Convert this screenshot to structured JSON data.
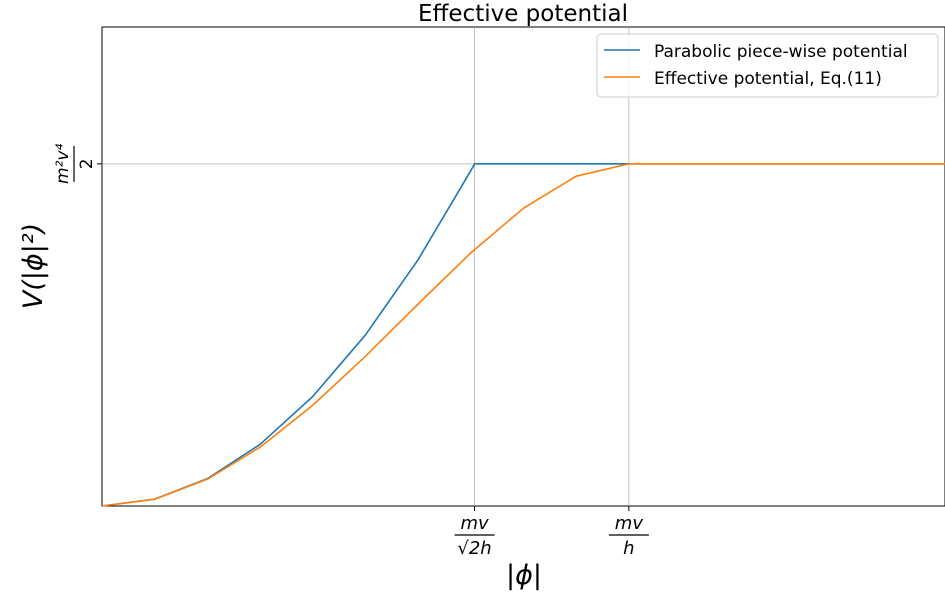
{
  "chart_data": {
    "type": "line",
    "title": "Effective potential",
    "xlabel": "|ϕ|",
    "ylabel": "V(|ϕ|²)",
    "xlim": [
      0,
      1.6
    ],
    "ylim": [
      0,
      1.4
    ],
    "grid": "vertical and horizontal lines at the labeled ticks only",
    "legend_position": "upper right",
    "x_ticks": [
      {
        "value": 0.7071,
        "numerator": "mv",
        "denominator": "√2h"
      },
      {
        "value": 1.0,
        "numerator": "mv",
        "denominator": "h"
      }
    ],
    "y_ticks": [
      {
        "value": 1.0,
        "numerator": "m²v⁴",
        "denominator": "2"
      }
    ],
    "series": [
      {
        "name": "Parabolic piece-wise potential",
        "color": "#1f77b4",
        "x": [
          0,
          0.1,
          0.2,
          0.3,
          0.4,
          0.5,
          0.6,
          0.7,
          0.7071,
          0.72,
          0.8,
          1.0,
          1.2,
          1.4,
          1.6
        ],
        "y": [
          0,
          0.02,
          0.08,
          0.18,
          0.32,
          0.5,
          0.72,
          0.98,
          1.0,
          1.0,
          1.0,
          1.0,
          1.0,
          1.0,
          1.0
        ]
      },
      {
        "name": "Effective potential, Eq.(11)",
        "color": "#ff7f0e",
        "x": [
          0,
          0.1,
          0.2,
          0.3,
          0.4,
          0.5,
          0.6,
          0.7,
          0.8,
          0.9,
          1.0,
          1.2,
          1.4,
          1.6
        ],
        "y": [
          0,
          0.0199,
          0.0784,
          0.1719,
          0.2944,
          0.4375,
          0.5904,
          0.7399,
          0.8704,
          0.9639,
          1.0,
          1.0,
          1.0,
          1.0
        ]
      }
    ]
  }
}
